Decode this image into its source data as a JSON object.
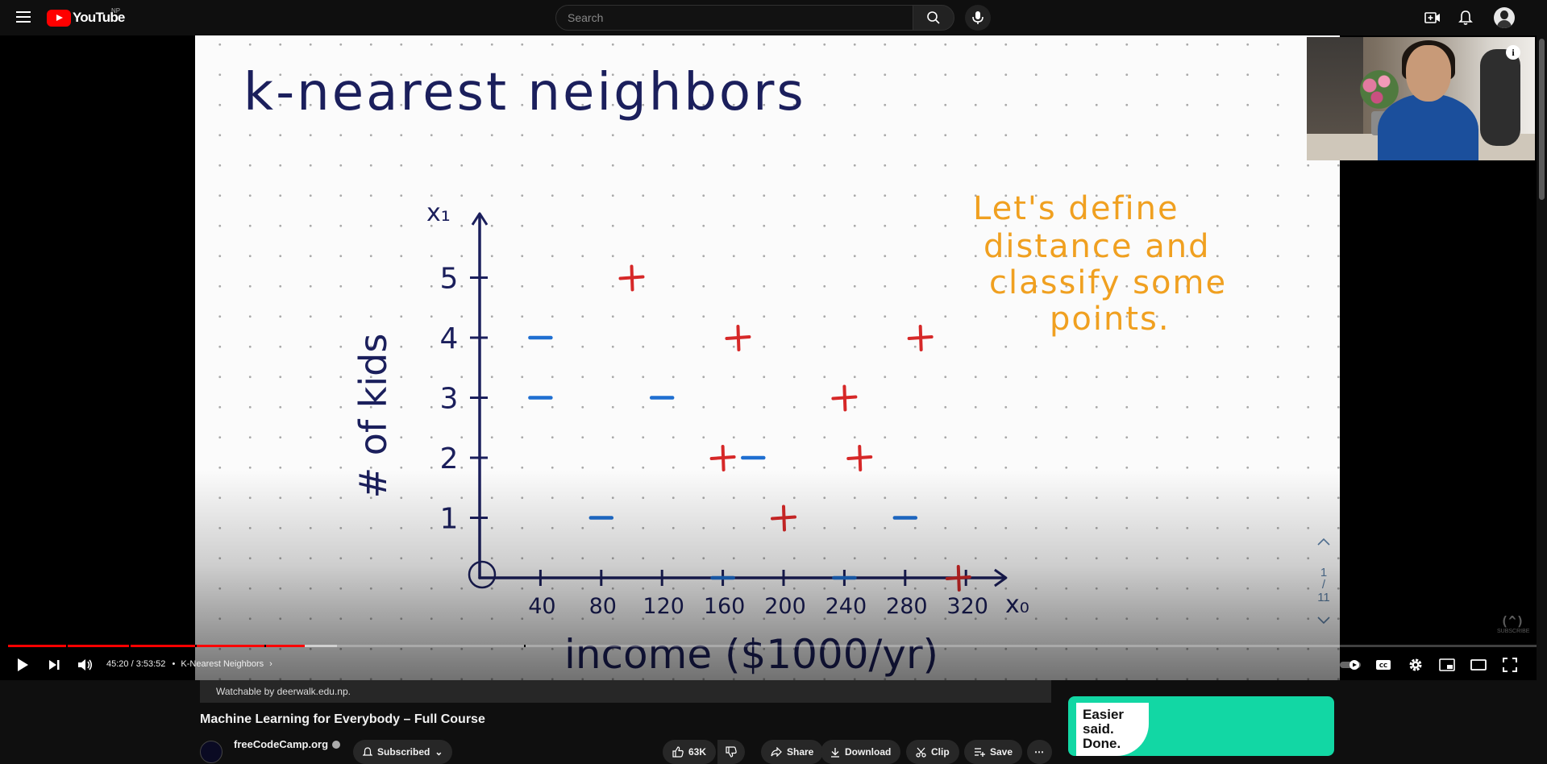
{
  "header": {
    "logo_text": "YouTube",
    "region": "NP",
    "search_placeholder": "Search"
  },
  "slide": {
    "title": "k-nearest neighbors",
    "note_lines": [
      "Let's define",
      "distance and",
      "classify some",
      "points."
    ],
    "page_current": "1",
    "page_total": "11",
    "watermark": "SUBSCRIBE"
  },
  "chart_data": {
    "type": "scatter",
    "title": "k-nearest neighbors",
    "xlabel": "income ($1000/yr)",
    "ylabel": "# of kids",
    "x_axis_name": "x₀",
    "y_axis_name": "x₁",
    "x_ticks": [
      "40",
      "80",
      "120",
      "160",
      "200",
      "240",
      "280",
      "320"
    ],
    "y_ticks": [
      "1",
      "2",
      "3",
      "4",
      "5"
    ],
    "xlim": [
      0,
      340
    ],
    "ylim": [
      0,
      5.8
    ],
    "series": [
      {
        "marker": "+",
        "color": "#d62828",
        "points": [
          [
            100,
            5
          ],
          [
            170,
            4
          ],
          [
            290,
            4
          ],
          [
            240,
            3
          ],
          [
            160,
            2
          ],
          [
            250,
            2
          ],
          [
            200,
            1
          ],
          [
            315,
            0
          ]
        ]
      },
      {
        "marker": "-",
        "color": "#1f6fd1",
        "points": [
          [
            40,
            4
          ],
          [
            40,
            3
          ],
          [
            120,
            3
          ],
          [
            180,
            2
          ],
          [
            80,
            1
          ],
          [
            280,
            1
          ],
          [
            160,
            0
          ],
          [
            240,
            0
          ]
        ]
      }
    ]
  },
  "player": {
    "time_current": "45:20",
    "time_total": "3:53:52",
    "time_sep": " / ",
    "bullet": "•",
    "chapter": "K-Nearest Neighbors",
    "progress_fraction": 0.194,
    "buffer_fraction": 0.215
  },
  "video": {
    "watchable": "Watchable by deerwalk.edu.np.",
    "title": "Machine Learning for Everybody – Full Course",
    "channel": "freeCodeCamp.org",
    "subscribed_label": "Subscribed",
    "likes": "63K",
    "share_label": "Share",
    "download_label": "Download",
    "clip_label": "Clip",
    "save_label": "Save"
  },
  "ad": {
    "line1": "Easier said.",
    "line2": "Done."
  },
  "colors": {
    "accent": "#ff0000",
    "ink": "#1b1f5c",
    "note": "#f0a020"
  }
}
